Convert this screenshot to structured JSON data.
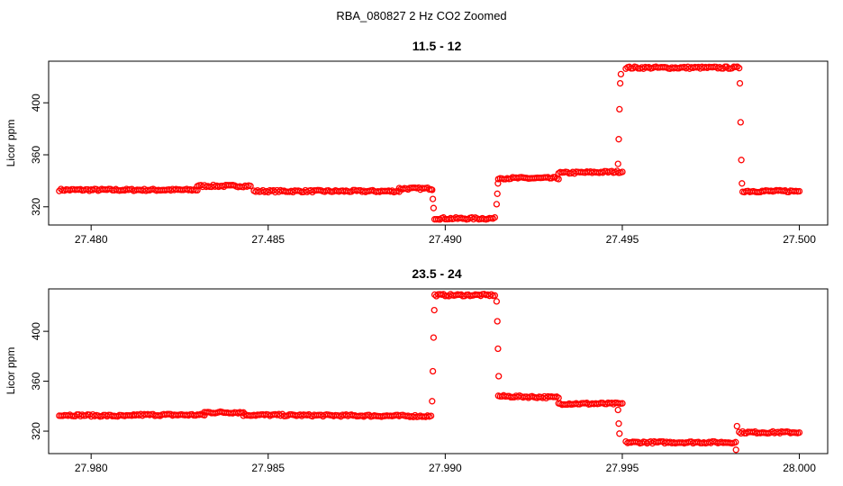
{
  "page_title": "RBA_080827  2 Hz CO2 Zoomed",
  "colors": {
    "points": "#ff0000",
    "axes": "#000000"
  },
  "chart_data": [
    {
      "type": "scatter",
      "title": "11.5 - 12",
      "xlabel": "",
      "ylabel": "Licor ppm",
      "xlim": [
        27.4788,
        27.5008
      ],
      "ylim": [
        306,
        432
      ],
      "xticks": [
        "27.480",
        "27.485",
        "27.490",
        "27.495",
        "27.500"
      ],
      "yticks": [
        "320",
        "360",
        "400"
      ],
      "grid": false,
      "marker": "open-circle",
      "segments": [
        {
          "x0": 27.4791,
          "x1": 27.483,
          "y0": 333,
          "y1": 333
        },
        {
          "x0": 27.483,
          "x1": 27.4845,
          "y0": 336,
          "y1": 336
        },
        {
          "x0": 27.4846,
          "x1": 27.4887,
          "y0": 332,
          "y1": 332
        },
        {
          "x0": 27.4887,
          "x1": 27.4896,
          "y0": 334,
          "y1": 334
        },
        {
          "x0": 27.4897,
          "x1": 27.4914,
          "y0": 311,
          "y1": 311
        },
        {
          "x0": 27.4915,
          "x1": 27.4932,
          "y0": 342,
          "y1": 342
        },
        {
          "x0": 27.4932,
          "x1": 27.495,
          "y0": 346,
          "y1": 347
        },
        {
          "x0": 27.4951,
          "x1": 27.4983,
          "y0": 427,
          "y1": 427
        },
        {
          "x0": 27.4984,
          "x1": 27.5,
          "y0": 332,
          "y1": 332
        }
      ],
      "transitions": [
        {
          "x": 27.48963,
          "y": 333
        },
        {
          "x": 27.48965,
          "y": 326
        },
        {
          "x": 27.48967,
          "y": 319
        },
        {
          "x": 27.49145,
          "y": 322
        },
        {
          "x": 27.49147,
          "y": 330
        },
        {
          "x": 27.49149,
          "y": 338
        },
        {
          "x": 27.49488,
          "y": 353
        },
        {
          "x": 27.4949,
          "y": 372
        },
        {
          "x": 27.49492,
          "y": 395
        },
        {
          "x": 27.49494,
          "y": 415
        },
        {
          "x": 27.49496,
          "y": 422
        },
        {
          "x": 27.49832,
          "y": 415
        },
        {
          "x": 27.49834,
          "y": 385
        },
        {
          "x": 27.49836,
          "y": 356
        },
        {
          "x": 27.49838,
          "y": 338
        }
      ]
    },
    {
      "type": "scatter",
      "title": "23.5 - 24",
      "xlabel": "",
      "ylabel": "Licor ppm",
      "xlim": [
        27.9788,
        28.0008
      ],
      "ylim": [
        302,
        434
      ],
      "xticks": [
        "27.980",
        "27.985",
        "27.990",
        "27.995",
        "28.000"
      ],
      "yticks": [
        "320",
        "360",
        "400"
      ],
      "grid": false,
      "marker": "open-circle",
      "segments": [
        {
          "x0": 27.9791,
          "x1": 27.9812,
          "y0": 333,
          "y1": 332
        },
        {
          "x0": 27.9812,
          "x1": 27.9832,
          "y0": 333,
          "y1": 333
        },
        {
          "x0": 27.9832,
          "x1": 27.9843,
          "y0": 335,
          "y1": 335
        },
        {
          "x0": 27.9843,
          "x1": 27.9896,
          "y0": 333,
          "y1": 332
        },
        {
          "x0": 27.9897,
          "x1": 27.9914,
          "y0": 429,
          "y1": 429
        },
        {
          "x0": 27.9915,
          "x1": 27.9932,
          "y0": 348,
          "y1": 347
        },
        {
          "x0": 27.9932,
          "x1": 27.995,
          "y0": 342,
          "y1": 342
        },
        {
          "x0": 27.9951,
          "x1": 27.9982,
          "y0": 311,
          "y1": 311
        },
        {
          "x0": 27.9983,
          "x1": 28.0,
          "y0": 319,
          "y1": 319
        }
      ],
      "transitions": [
        {
          "x": 27.98963,
          "y": 344
        },
        {
          "x": 27.98965,
          "y": 368
        },
        {
          "x": 27.98967,
          "y": 395
        },
        {
          "x": 27.98969,
          "y": 417
        },
        {
          "x": 27.99145,
          "y": 424
        },
        {
          "x": 27.99147,
          "y": 408
        },
        {
          "x": 27.99149,
          "y": 386
        },
        {
          "x": 27.99151,
          "y": 364
        },
        {
          "x": 27.99488,
          "y": 337
        },
        {
          "x": 27.9949,
          "y": 326
        },
        {
          "x": 27.99492,
          "y": 318
        },
        {
          "x": 27.99821,
          "y": 305
        },
        {
          "x": 27.99824,
          "y": 324
        }
      ]
    }
  ]
}
